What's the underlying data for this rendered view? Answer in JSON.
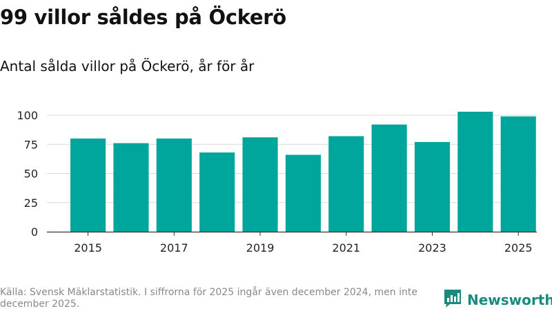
{
  "title": "99 villor såldes på Öckerö",
  "subtitle": "Antal sålda villor på Öckerö, år för år",
  "footer": "Källa: Svensk Mäklarstatistik. I siffrorna för 2025 ingår även december 2024, men inte december 2025.",
  "brand": "Newsworthy",
  "colors": {
    "bar": "#00a69c",
    "brand": "#1a8a7e",
    "grid": "#d9d9d9"
  },
  "chart_data": {
    "type": "bar",
    "title": "99 villor såldes på Öckerö",
    "subtitle": "Antal sålda villor på Öckerö, år för år",
    "xlabel": "",
    "ylabel": "",
    "categories": [
      "2015",
      "2016",
      "2017",
      "2018",
      "2019",
      "2020",
      "2021",
      "2022",
      "2023",
      "2024",
      "2025"
    ],
    "values": [
      80,
      76,
      80,
      68,
      81,
      66,
      82,
      92,
      77,
      103,
      99
    ],
    "x_tick_labels": [
      "2015",
      "2017",
      "2019",
      "2021",
      "2023",
      "2025"
    ],
    "y_ticks": [
      0,
      25,
      50,
      75,
      100
    ],
    "ylim": [
      0,
      103
    ],
    "grid": true
  }
}
